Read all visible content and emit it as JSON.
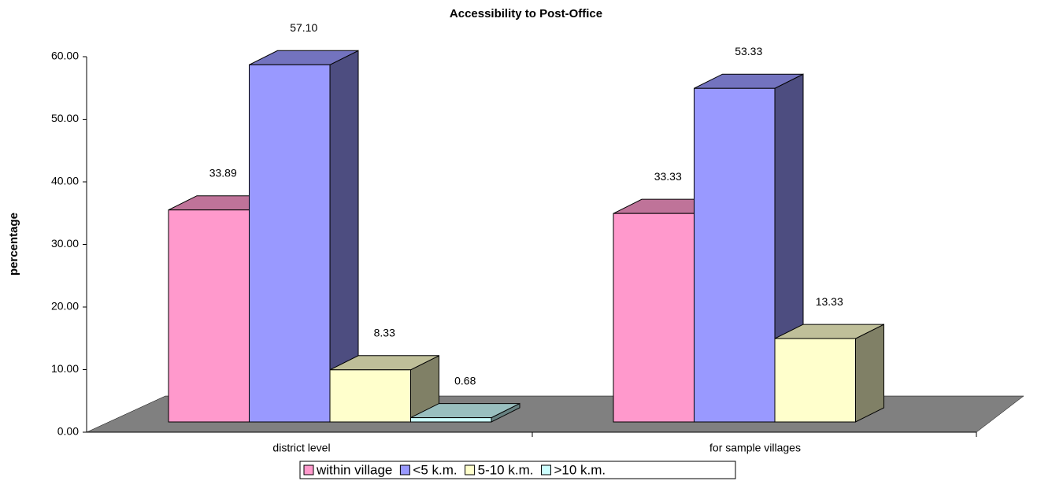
{
  "chart_data": {
    "type": "bar3d",
    "title": "Accessibility  to Post-Office",
    "y_label": "percentage",
    "categories": [
      "district level",
      "for sample villages"
    ],
    "series": [
      {
        "name": "within village",
        "color": "#ff99cc",
        "values": [
          33.89,
          33.33
        ]
      },
      {
        "name": "<5 k.m.",
        "color": "#9999ff",
        "values": [
          57.1,
          53.33
        ],
        "value_labels": [
          "57.10",
          "53.33"
        ]
      },
      {
        "name": "5-10 k.m.",
        "color": "#ffffcc",
        "values": [
          8.33,
          13.33
        ]
      },
      {
        "name": ">10 k.m.",
        "color": "#ccffff",
        "values": [
          0.68,
          null
        ]
      }
    ],
    "ylim": [
      0,
      60
    ],
    "yticks": [
      {
        "value": 0,
        "label": "0.00"
      },
      {
        "value": 10,
        "label": "10.00"
      },
      {
        "value": 20,
        "label": "20.00"
      },
      {
        "value": 30,
        "label": "30.00"
      },
      {
        "value": 40,
        "label": "40.00"
      },
      {
        "value": 50,
        "label": "50.00"
      },
      {
        "value": 60,
        "label": "60.00"
      }
    ],
    "legend": "bottom"
  }
}
